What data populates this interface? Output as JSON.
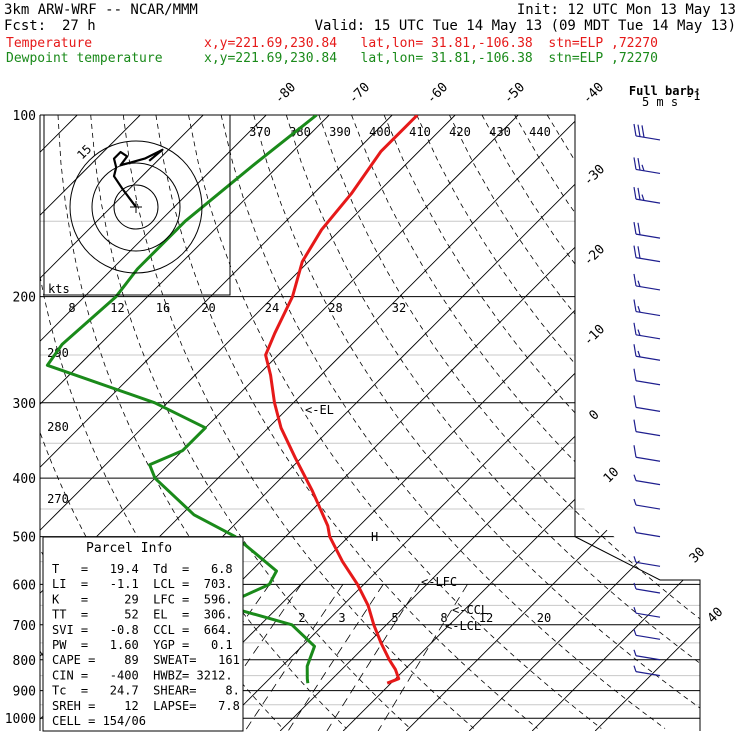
{
  "header": {
    "model": "3km ARW-WRF -- NCAR/MMM",
    "init": "Init: 12 UTC Mon 13 May 13",
    "fcst_label": "Fcst:",
    "fcst_value": "27 h",
    "valid": "Valid: 15 UTC Tue 14 May 13 (09 MDT Tue 14 May 13)",
    "temp_name": "Temperature",
    "temp_info": "x,y=221.69,230.84   lat,lon= 31.81,-106.38  stn=ELP ,72270",
    "dew_name": "Dewpoint temperature",
    "dew_info": "x,y=221.69,230.84   lat,lon= 31.81,-106.38  stn=ELP ,72270",
    "full_barb_1": "Full barb:",
    "full_barb_2": "5 m s",
    "full_barb_sup": "-1"
  },
  "colors": {
    "temperature": "#e61919",
    "dewpoint": "#1a8a1a",
    "barbs": "#1f1f8f",
    "parcel_text": "#1c2b96"
  },
  "chart_data": {
    "type": "line",
    "title": "",
    "xlabel": "",
    "ylabel": "",
    "y_scale": "log-pressure",
    "pressure_levels": [
      "100",
      "200",
      "300",
      "400",
      "500",
      "600",
      "700",
      "800",
      "900",
      "1000"
    ],
    "isotherm_labels": [
      "-80",
      "-70",
      "-60",
      "-50",
      "-40",
      "-30",
      "-20",
      "-10",
      "0",
      "10",
      "30",
      "40"
    ],
    "theta_labels": [
      "370",
      "380",
      "390",
      "400",
      "410",
      "420",
      "430",
      "440"
    ],
    "theta_left_labels": [
      "290",
      "280",
      "270"
    ],
    "mixing_ratio_labels_top": [
      "8",
      "12",
      "16",
      "20",
      "24",
      "28",
      "32"
    ],
    "mixing_ratio_labels_bottom": [
      "2",
      "3",
      "5",
      "8",
      "12",
      "20"
    ],
    "annotations": {
      "el": "<-EL",
      "lfc": "<-LFC",
      "ccl": "<-CCL",
      "lcl": "<-LCL",
      "h": "H"
    },
    "series": [
      {
        "name": "Temperature",
        "color": "#e61919",
        "points": [
          {
            "p": 100,
            "t": -66
          },
          {
            "p": 115,
            "t": -66
          },
          {
            "p": 135,
            "t": -64
          },
          {
            "p": 155,
            "t": -63
          },
          {
            "p": 175,
            "t": -61
          },
          {
            "p": 200,
            "t": -57
          },
          {
            "p": 230,
            "t": -54
          },
          {
            "p": 250,
            "t": -52
          },
          {
            "p": 270,
            "t": -48
          },
          {
            "p": 300,
            "t": -43
          },
          {
            "p": 330,
            "t": -38
          },
          {
            "p": 370,
            "t": -31
          },
          {
            "p": 420,
            "t": -23
          },
          {
            "p": 480,
            "t": -15
          },
          {
            "p": 500,
            "t": -13
          },
          {
            "p": 550,
            "t": -7
          },
          {
            "p": 600,
            "t": -1
          },
          {
            "p": 650,
            "t": 4
          },
          {
            "p": 700,
            "t": 8
          },
          {
            "p": 750,
            "t": 12
          },
          {
            "p": 800,
            "t": 16
          },
          {
            "p": 830,
            "t": 18.5
          },
          {
            "p": 860,
            "t": 20.5
          },
          {
            "p": 875,
            "t": 19.4
          }
        ]
      },
      {
        "name": "Dewpoint temperature",
        "color": "#1a8a1a",
        "points": [
          {
            "p": 100,
            "t": -82
          },
          {
            "p": 120,
            "t": -84
          },
          {
            "p": 150,
            "t": -86
          },
          {
            "p": 180,
            "t": -86
          },
          {
            "p": 200,
            "t": -85
          },
          {
            "p": 240,
            "t": -86
          },
          {
            "p": 260,
            "t": -85
          },
          {
            "p": 300,
            "t": -62
          },
          {
            "p": 330,
            "t": -50
          },
          {
            "p": 360,
            "t": -50
          },
          {
            "p": 380,
            "t": -53
          },
          {
            "p": 400,
            "t": -50
          },
          {
            "p": 460,
            "t": -38
          },
          {
            "p": 500,
            "t": -28
          },
          {
            "p": 570,
            "t": -16
          },
          {
            "p": 600,
            "t": -15
          },
          {
            "p": 650,
            "t": -19
          },
          {
            "p": 700,
            "t": -5
          },
          {
            "p": 760,
            "t": 2
          },
          {
            "p": 820,
            "t": 4
          },
          {
            "p": 860,
            "t": 6
          },
          {
            "p": 875,
            "t": 6.8
          }
        ]
      }
    ],
    "wind_barbs": [
      {
        "p": 110,
        "speed": 30
      },
      {
        "p": 125,
        "speed": 25
      },
      {
        "p": 140,
        "speed": 25
      },
      {
        "p": 160,
        "speed": 20
      },
      {
        "p": 175,
        "speed": 20
      },
      {
        "p": 195,
        "speed": 15
      },
      {
        "p": 215,
        "speed": 15
      },
      {
        "p": 235,
        "speed": 15
      },
      {
        "p": 255,
        "speed": 15
      },
      {
        "p": 280,
        "speed": 10
      },
      {
        "p": 310,
        "speed": 10
      },
      {
        "p": 340,
        "speed": 10
      },
      {
        "p": 375,
        "speed": 10
      },
      {
        "p": 410,
        "speed": 5
      },
      {
        "p": 450,
        "speed": 5
      },
      {
        "p": 500,
        "speed": 5
      },
      {
        "p": 560,
        "speed": 5
      },
      {
        "p": 620,
        "speed": 5
      },
      {
        "p": 680,
        "speed": 5
      },
      {
        "p": 740,
        "speed": 5
      },
      {
        "p": 800,
        "speed": 5
      },
      {
        "p": 850,
        "speed": 5
      }
    ],
    "hodograph": {
      "kts_label": "kts",
      "ring_label": "15",
      "trace": [
        [
          0,
          0
        ],
        [
          -6,
          8
        ],
        [
          -10,
          14
        ],
        [
          -9,
          18
        ],
        [
          -10,
          22
        ],
        [
          -7,
          25
        ],
        [
          -4,
          23
        ],
        [
          -7,
          19
        ],
        [
          4,
          22
        ],
        [
          12,
          26
        ],
        [
          6,
          21
        ]
      ]
    },
    "parcel_info": {
      "title": "Parcel Info",
      "rows": [
        "T   =   19.4  Td  =   6.8",
        "LI  =   -1.1  LCL =  703.",
        "K   =     29  LFC =  596.",
        "TT  =     52  EL  =  306.",
        "SVI =   -0.8  CCL =  664.",
        "PW  =   1.60  YGP =   0.1",
        "CAPE =    89  SWEAT=   161",
        "CIN =   -400  HWBZ= 3212.",
        "Tc  =   24.7  SHEAR=    8.",
        "SREH =    12  LAPSE=   7.8",
        "CELL = 154/06"
      ]
    }
  }
}
